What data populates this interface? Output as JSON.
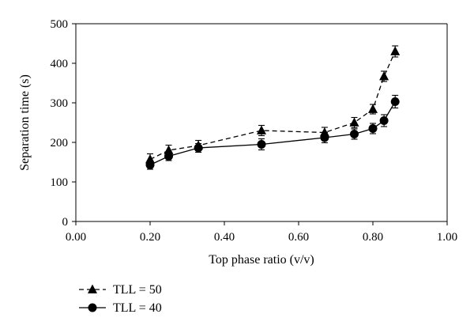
{
  "chart_data": {
    "type": "line",
    "title": "",
    "xlabel": "Top phase ratio (v/v)",
    "ylabel": "Separation time (s)",
    "xlim": [
      0,
      1
    ],
    "ylim": [
      0,
      500
    ],
    "x_ticks": [
      "0.00",
      "0.20",
      "0.40",
      "0.60",
      "0.80",
      "1.00"
    ],
    "y_ticks": [
      "0",
      "100",
      "200",
      "300",
      "400",
      "500"
    ],
    "grid": false,
    "legend_position": "bottom-left",
    "series": [
      {
        "name": "TLL = 50",
        "marker": "triangle",
        "line_style": "dashed",
        "points": [
          {
            "x": 0.2,
            "y": 157,
            "err": 14
          },
          {
            "x": 0.25,
            "y": 180,
            "err": 13
          },
          {
            "x": 0.33,
            "y": 192,
            "err": 13
          },
          {
            "x": 0.5,
            "y": 230,
            "err": 13
          },
          {
            "x": 0.67,
            "y": 225,
            "err": 13
          },
          {
            "x": 0.75,
            "y": 250,
            "err": 13
          },
          {
            "x": 0.8,
            "y": 284,
            "err": 12
          },
          {
            "x": 0.83,
            "y": 367,
            "err": 13
          },
          {
            "x": 0.86,
            "y": 430,
            "err": 14
          }
        ]
      },
      {
        "name": "TLL = 40",
        "marker": "circle",
        "line_style": "solid",
        "points": [
          {
            "x": 0.2,
            "y": 143,
            "err": 11
          },
          {
            "x": 0.25,
            "y": 165,
            "err": 11
          },
          {
            "x": 0.33,
            "y": 186,
            "err": 11
          },
          {
            "x": 0.5,
            "y": 195,
            "err": 14
          },
          {
            "x": 0.67,
            "y": 212,
            "err": 13
          },
          {
            "x": 0.75,
            "y": 221,
            "err": 13
          },
          {
            "x": 0.8,
            "y": 235,
            "err": 13
          },
          {
            "x": 0.83,
            "y": 255,
            "err": 15
          },
          {
            "x": 0.86,
            "y": 303,
            "err": 16
          }
        ]
      }
    ]
  }
}
